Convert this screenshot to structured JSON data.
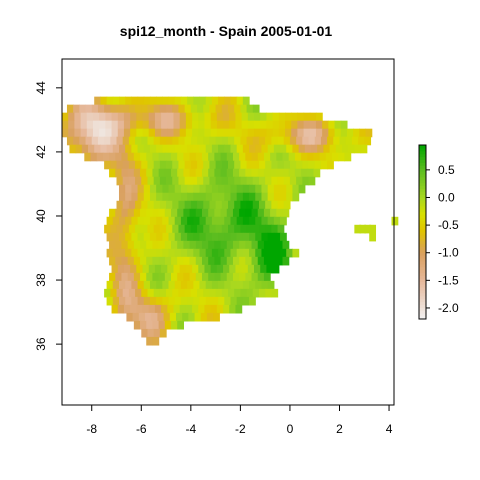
{
  "chart_data": {
    "type": "heatmap",
    "title": "spi12_month - Spain 2005-01-01",
    "xlabel": "",
    "ylabel": "",
    "xlim": [
      -9.2,
      4.2
    ],
    "ylim": [
      34.1,
      44.9
    ],
    "x_ticks": [
      -8,
      -6,
      -4,
      -2,
      0,
      2,
      4
    ],
    "y_ticks": [
      36,
      38,
      40,
      42,
      44
    ],
    "x_tick_labels": [
      "-8",
      "-6",
      "-4",
      "-2",
      "0",
      "2",
      "4"
    ],
    "y_tick_labels": [
      "36",
      "38",
      "40",
      "42",
      "44"
    ],
    "cell_size_deg": 0.25,
    "grid": false,
    "legend": {
      "position": "right",
      "range": [
        -2.2,
        0.95
      ],
      "ticks": [
        0.5,
        0.0,
        -0.5,
        -1.0,
        -1.5,
        -2.0
      ],
      "tick_labels": [
        "0.5",
        "0.0",
        "-0.5",
        "-1.0",
        "-1.5",
        "-2.0"
      ]
    },
    "color_stops": [
      {
        "value": -2.2,
        "color": "#f2f2f2"
      },
      {
        "value": -1.5,
        "color": "#e6b89a"
      },
      {
        "value": -1.0,
        "color": "#d9a05e"
      },
      {
        "value": -0.6,
        "color": "#e0c400"
      },
      {
        "value": -0.3,
        "color": "#d8e000"
      },
      {
        "value": 0.0,
        "color": "#a8d820"
      },
      {
        "value": 0.5,
        "color": "#5cbd20"
      },
      {
        "value": 0.95,
        "color": "#00a600"
      }
    ],
    "regions_note_free": true
  }
}
